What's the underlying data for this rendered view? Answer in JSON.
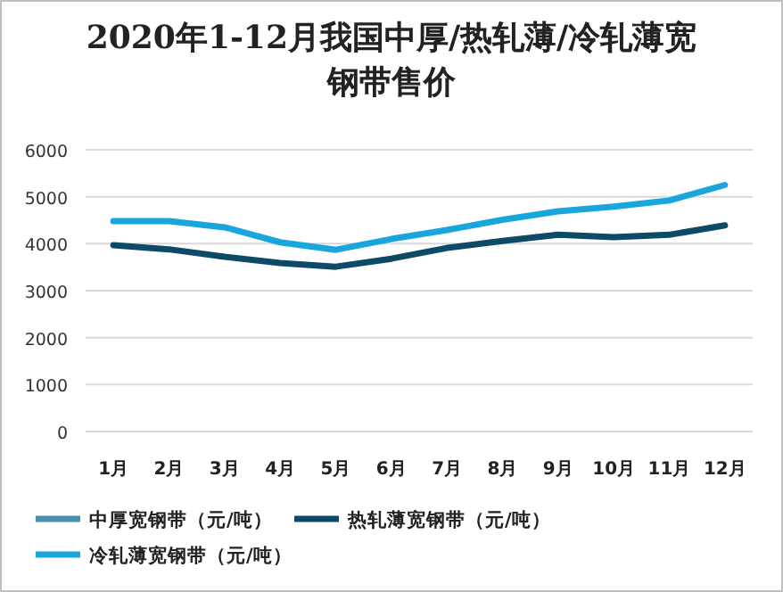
{
  "chart_data": {
    "type": "line",
    "title": "2020年1-12月我国中厚/热轧薄/冷轧薄宽钢带售价",
    "categories": [
      "1月",
      "2月",
      "3月",
      "4月",
      "5月",
      "6月",
      "7月",
      "8月",
      "9月",
      "10月",
      "11月",
      "12月"
    ],
    "series": [
      {
        "name": "中厚宽钢带（元/吨）",
        "color": "#4a8fae",
        "values": [
          null,
          null,
          null,
          null,
          null,
          null,
          null,
          null,
          null,
          null,
          null,
          null
        ]
      },
      {
        "name": "热轧薄宽钢带（元/吨）",
        "color": "#0d4a66",
        "values": [
          3970,
          3880,
          3720,
          3590,
          3510,
          3680,
          3910,
          4060,
          4190,
          4140,
          4190,
          4390
        ]
      },
      {
        "name": "冷轧薄宽钢带（元/吨）",
        "color": "#19a6dd",
        "values": [
          4480,
          4480,
          4350,
          4030,
          3870,
          4100,
          4290,
          4510,
          4690,
          4790,
          4920,
          5250
        ]
      }
    ],
    "ylim": [
      0,
      6000
    ],
    "yticks": [
      0,
      1000,
      2000,
      3000,
      4000,
      5000,
      6000
    ],
    "grid": "y",
    "legend": "bottom",
    "marker": "none",
    "line_style": "solid"
  }
}
